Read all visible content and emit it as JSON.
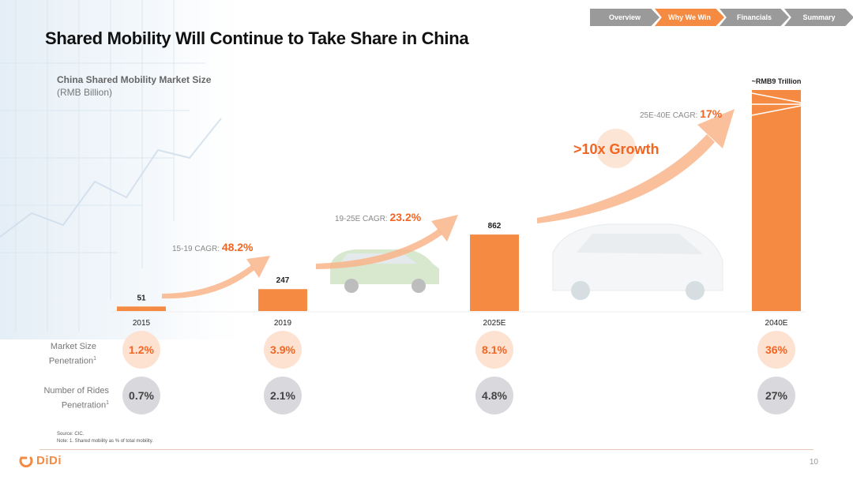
{
  "nav": {
    "tabs": [
      {
        "label": "Overview",
        "active": false
      },
      {
        "label": "Why We Win",
        "active": true
      },
      {
        "label": "Financials",
        "active": false
      },
      {
        "label": "Summary",
        "active": false
      }
    ]
  },
  "title": "Shared Mobility Will Continue to Take Share in China",
  "colors": {
    "accent": "#f58a42",
    "gray_bubble": "#d9d9dd",
    "orange_bubble": "#fde2d1",
    "accent_text": "#f26522"
  },
  "chart_data": {
    "type": "bar",
    "title": "China Shared Mobility Market Size",
    "unit": "(RMB Billion)",
    "categories": [
      "2015",
      "2019",
      "2025E",
      "2040E"
    ],
    "values": [
      51,
      247,
      862,
      9000
    ],
    "value_labels": [
      "51",
      "247",
      "862",
      "~RMB9 Trillion"
    ],
    "broken_axis_last_bar": true,
    "cagr": [
      {
        "label": "15-19 CAGR:",
        "value": "48.2%"
      },
      {
        "label": "19-25E CAGR:",
        "value": "23.2%"
      },
      {
        "label": "25E-40E CAGR:",
        "value": "17%"
      }
    ],
    "growth_callout": ">10x Growth",
    "rows": [
      {
        "label": "Market Size",
        "label2": "Penetration",
        "sup": "1",
        "values": [
          "1.2%",
          "3.9%",
          "8.1%",
          "36%"
        ]
      },
      {
        "label": "Number of Rides",
        "label2": "Penetration",
        "sup": "1",
        "values": [
          "0.7%",
          "2.1%",
          "4.8%",
          "27%"
        ]
      }
    ]
  },
  "footnotes": {
    "source": "Source: CIC.",
    "note": "Note: 1. Shared mobility as % of total mobility."
  },
  "brand": "DiDi",
  "page_number": "10"
}
